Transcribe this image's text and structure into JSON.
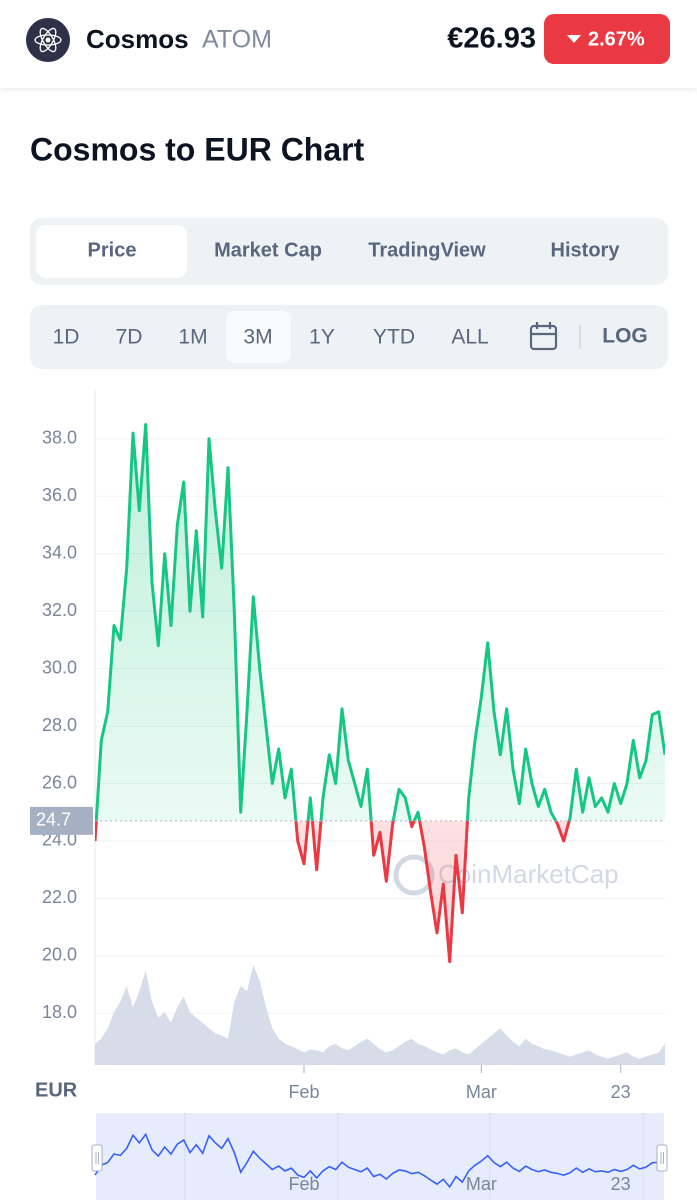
{
  "header": {
    "name": "Cosmos",
    "symbol": "ATOM",
    "price": "€26.93",
    "change": "2.67%"
  },
  "section_title": "Cosmos to EUR Chart",
  "tabs": [
    "Price",
    "Market Cap",
    "TradingView",
    "History"
  ],
  "active_tab": 0,
  "ranges": [
    "1D",
    "7D",
    "1M",
    "3M",
    "1Y",
    "YTD",
    "ALL"
  ],
  "active_range": 3,
  "scale_toggle": "LOG",
  "chart_data": {
    "type": "line",
    "unit_label": "EUR",
    "watermark": "CoinMarketCap",
    "up_color": "#16c784",
    "down_color": "#ea3943",
    "baseline": 24.7,
    "x": [
      0,
      1,
      2,
      3,
      4,
      5,
      6,
      7,
      8,
      9,
      10,
      11,
      12,
      13,
      14,
      15,
      16,
      17,
      18,
      19,
      20,
      21,
      22,
      23,
      24,
      25,
      26,
      27,
      28,
      29,
      30,
      31,
      32,
      33,
      34,
      35,
      36,
      37,
      38,
      39,
      40,
      41,
      42,
      43,
      44,
      45,
      46,
      47,
      48,
      49,
      50,
      51,
      52,
      53,
      54,
      55,
      56,
      57,
      58,
      59,
      60,
      61,
      62,
      63,
      64,
      65,
      66,
      67,
      68,
      69,
      70,
      71,
      72,
      73,
      74,
      75,
      76,
      77,
      78,
      79,
      80,
      81,
      82,
      83,
      84,
      85,
      86,
      87,
      88,
      89,
      90
    ],
    "values": [
      24.0,
      27.5,
      28.5,
      31.5,
      31.0,
      33.5,
      38.2,
      35.5,
      38.5,
      33.0,
      30.8,
      34.0,
      31.5,
      35.0,
      36.5,
      32.0,
      34.8,
      31.8,
      38.0,
      35.5,
      33.5,
      37.0,
      32.0,
      25.0,
      28.5,
      32.5,
      30.0,
      28.0,
      26.0,
      27.2,
      25.5,
      26.5,
      24.0,
      23.2,
      25.5,
      23.0,
      25.5,
      27.0,
      26.0,
      28.6,
      26.8,
      26.0,
      25.2,
      26.5,
      23.5,
      24.3,
      22.6,
      24.6,
      25.8,
      25.5,
      24.5,
      25.0,
      23.8,
      22.2,
      20.8,
      22.5,
      19.8,
      23.5,
      21.5,
      25.5,
      27.5,
      29.0,
      30.9,
      28.5,
      27.0,
      28.6,
      26.5,
      25.3,
      27.2,
      26.0,
      25.2,
      25.8,
      25.0,
      24.6,
      24.0,
      24.8,
      26.5,
      25.0,
      26.2,
      25.2,
      25.5,
      25.0,
      26.0,
      25.3,
      26.0,
      27.5,
      26.2,
      26.8,
      28.4,
      28.5,
      27.0
    ],
    "volume": [
      20,
      25,
      35,
      50,
      60,
      75,
      55,
      70,
      90,
      60,
      45,
      50,
      40,
      55,
      65,
      50,
      45,
      40,
      35,
      30,
      28,
      25,
      60,
      75,
      70,
      95,
      80,
      55,
      35,
      25,
      20,
      18,
      15,
      12,
      15,
      14,
      12,
      18,
      20,
      16,
      14,
      18,
      22,
      25,
      20,
      15,
      12,
      14,
      18,
      22,
      25,
      20,
      18,
      15,
      12,
      10,
      14,
      16,
      12,
      10,
      15,
      20,
      25,
      30,
      35,
      28,
      22,
      18,
      25,
      20,
      18,
      15,
      14,
      12,
      10,
      8,
      10,
      12,
      14,
      10,
      8,
      6,
      8,
      10,
      12,
      8,
      6,
      8,
      10,
      12,
      20
    ],
    "xlim": [
      0,
      90
    ],
    "xticks": [
      {
        "value": 33,
        "label": "Feb"
      },
      {
        "value": 61,
        "label": "Mar"
      },
      {
        "value": 83,
        "label": "23"
      }
    ],
    "ylim": [
      16.2,
      39.7
    ],
    "yticks": [
      {
        "value": 18,
        "label": "18.0"
      },
      {
        "value": 20,
        "label": "20.0"
      },
      {
        "value": 22,
        "label": "22.0"
      },
      {
        "value": 24,
        "label": "24.0"
      },
      {
        "value": 26,
        "label": "26.0"
      },
      {
        "value": 28,
        "label": "28.0"
      },
      {
        "value": 30,
        "label": "30.0"
      },
      {
        "value": 32,
        "label": "32.0"
      },
      {
        "value": 34,
        "label": "34.0"
      },
      {
        "value": 36,
        "label": "36.0"
      },
      {
        "value": 38,
        "label": "38.0"
      }
    ],
    "grid": true
  }
}
